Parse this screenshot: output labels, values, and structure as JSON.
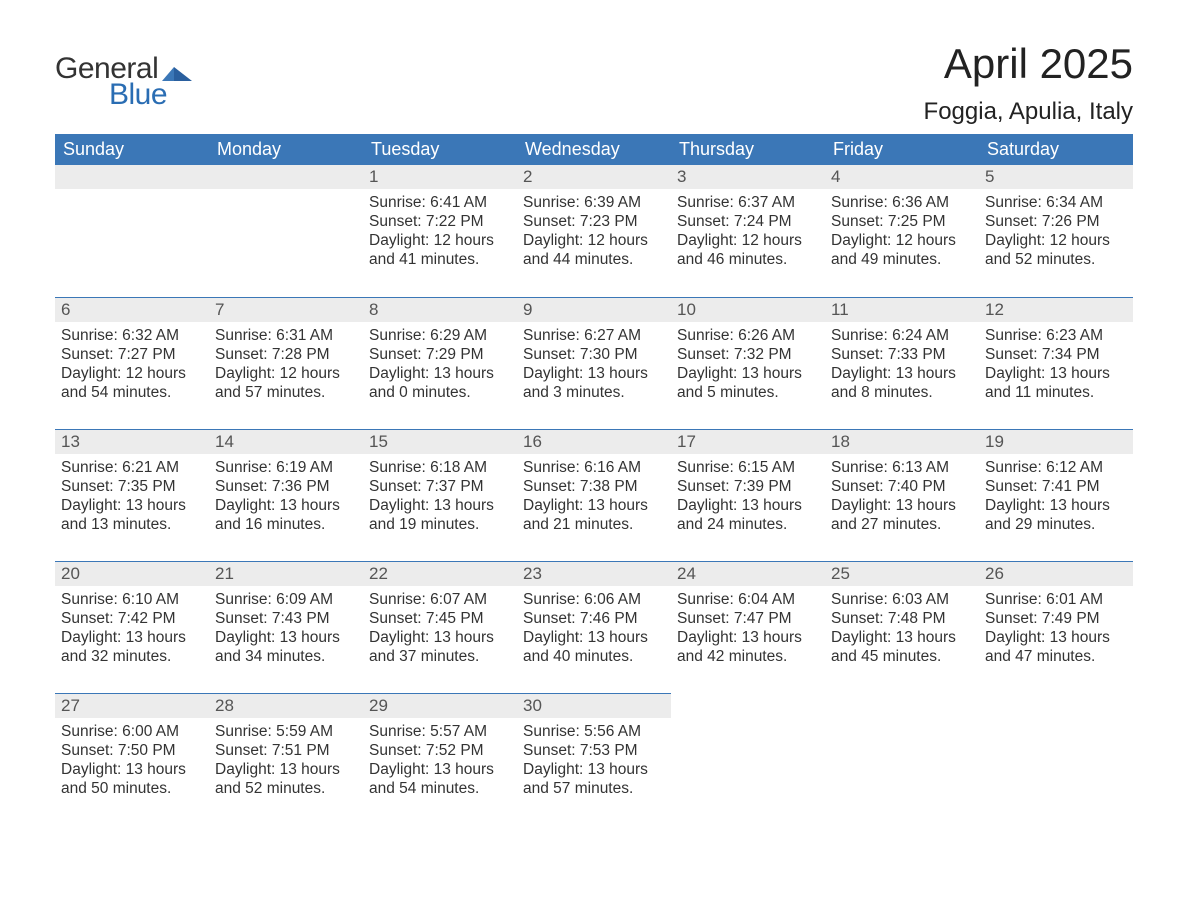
{
  "brand": {
    "word1": "General",
    "word2": "Blue",
    "accent_color": "#3b77b7"
  },
  "title": "April 2025",
  "location": "Foggia, Apulia, Italy",
  "colors": {
    "header_bg": "#3b77b7",
    "header_text": "#ffffff",
    "daynum_bg": "#ececec",
    "daynum_text": "#555555",
    "body_text": "#333333",
    "rule": "#3b77b7"
  },
  "daysOfWeek": [
    "Sunday",
    "Monday",
    "Tuesday",
    "Wednesday",
    "Thursday",
    "Friday",
    "Saturday"
  ],
  "weeks": [
    [
      null,
      null,
      {
        "n": "1",
        "sunrise": "6:41 AM",
        "sunset": "7:22 PM",
        "dl_h": "12",
        "dl_m": "41"
      },
      {
        "n": "2",
        "sunrise": "6:39 AM",
        "sunset": "7:23 PM",
        "dl_h": "12",
        "dl_m": "44"
      },
      {
        "n": "3",
        "sunrise": "6:37 AM",
        "sunset": "7:24 PM",
        "dl_h": "12",
        "dl_m": "46"
      },
      {
        "n": "4",
        "sunrise": "6:36 AM",
        "sunset": "7:25 PM",
        "dl_h": "12",
        "dl_m": "49"
      },
      {
        "n": "5",
        "sunrise": "6:34 AM",
        "sunset": "7:26 PM",
        "dl_h": "12",
        "dl_m": "52"
      }
    ],
    [
      {
        "n": "6",
        "sunrise": "6:32 AM",
        "sunset": "7:27 PM",
        "dl_h": "12",
        "dl_m": "54"
      },
      {
        "n": "7",
        "sunrise": "6:31 AM",
        "sunset": "7:28 PM",
        "dl_h": "12",
        "dl_m": "57"
      },
      {
        "n": "8",
        "sunrise": "6:29 AM",
        "sunset": "7:29 PM",
        "dl_h": "13",
        "dl_m": "0"
      },
      {
        "n": "9",
        "sunrise": "6:27 AM",
        "sunset": "7:30 PM",
        "dl_h": "13",
        "dl_m": "3"
      },
      {
        "n": "10",
        "sunrise": "6:26 AM",
        "sunset": "7:32 PM",
        "dl_h": "13",
        "dl_m": "5"
      },
      {
        "n": "11",
        "sunrise": "6:24 AM",
        "sunset": "7:33 PM",
        "dl_h": "13",
        "dl_m": "8"
      },
      {
        "n": "12",
        "sunrise": "6:23 AM",
        "sunset": "7:34 PM",
        "dl_h": "13",
        "dl_m": "11"
      }
    ],
    [
      {
        "n": "13",
        "sunrise": "6:21 AM",
        "sunset": "7:35 PM",
        "dl_h": "13",
        "dl_m": "13"
      },
      {
        "n": "14",
        "sunrise": "6:19 AM",
        "sunset": "7:36 PM",
        "dl_h": "13",
        "dl_m": "16"
      },
      {
        "n": "15",
        "sunrise": "6:18 AM",
        "sunset": "7:37 PM",
        "dl_h": "13",
        "dl_m": "19"
      },
      {
        "n": "16",
        "sunrise": "6:16 AM",
        "sunset": "7:38 PM",
        "dl_h": "13",
        "dl_m": "21"
      },
      {
        "n": "17",
        "sunrise": "6:15 AM",
        "sunset": "7:39 PM",
        "dl_h": "13",
        "dl_m": "24"
      },
      {
        "n": "18",
        "sunrise": "6:13 AM",
        "sunset": "7:40 PM",
        "dl_h": "13",
        "dl_m": "27"
      },
      {
        "n": "19",
        "sunrise": "6:12 AM",
        "sunset": "7:41 PM",
        "dl_h": "13",
        "dl_m": "29"
      }
    ],
    [
      {
        "n": "20",
        "sunrise": "6:10 AM",
        "sunset": "7:42 PM",
        "dl_h": "13",
        "dl_m": "32"
      },
      {
        "n": "21",
        "sunrise": "6:09 AM",
        "sunset": "7:43 PM",
        "dl_h": "13",
        "dl_m": "34"
      },
      {
        "n": "22",
        "sunrise": "6:07 AM",
        "sunset": "7:45 PM",
        "dl_h": "13",
        "dl_m": "37"
      },
      {
        "n": "23",
        "sunrise": "6:06 AM",
        "sunset": "7:46 PM",
        "dl_h": "13",
        "dl_m": "40"
      },
      {
        "n": "24",
        "sunrise": "6:04 AM",
        "sunset": "7:47 PM",
        "dl_h": "13",
        "dl_m": "42"
      },
      {
        "n": "25",
        "sunrise": "6:03 AM",
        "sunset": "7:48 PM",
        "dl_h": "13",
        "dl_m": "45"
      },
      {
        "n": "26",
        "sunrise": "6:01 AM",
        "sunset": "7:49 PM",
        "dl_h": "13",
        "dl_m": "47"
      }
    ],
    [
      {
        "n": "27",
        "sunrise": "6:00 AM",
        "sunset": "7:50 PM",
        "dl_h": "13",
        "dl_m": "50"
      },
      {
        "n": "28",
        "sunrise": "5:59 AM",
        "sunset": "7:51 PM",
        "dl_h": "13",
        "dl_m": "52"
      },
      {
        "n": "29",
        "sunrise": "5:57 AM",
        "sunset": "7:52 PM",
        "dl_h": "13",
        "dl_m": "54"
      },
      {
        "n": "30",
        "sunrise": "5:56 AM",
        "sunset": "7:53 PM",
        "dl_h": "13",
        "dl_m": "57"
      },
      null,
      null,
      null
    ]
  ],
  "labels": {
    "sunrise": "Sunrise: ",
    "sunset": "Sunset: ",
    "daylight_prefix": "Daylight: ",
    "hours_word": " hours and ",
    "minutes_word": " minutes."
  }
}
